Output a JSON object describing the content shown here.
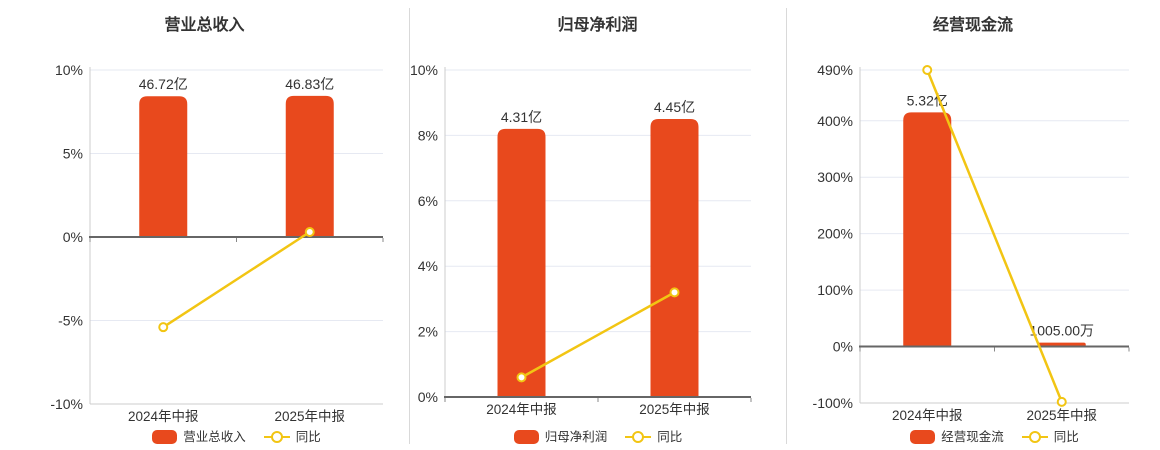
{
  "colors": {
    "bar": "#e8491d",
    "line": "#f2c513",
    "axis": "#cccccc",
    "grid": "#e6e9f2",
    "zero_axis": "#666666",
    "tick": "#888888",
    "text": "#333333",
    "divider": "#d9d9d9",
    "background": "#ffffff"
  },
  "chart_data": [
    {
      "type": "bar",
      "title": "营业总收入",
      "categories": [
        "2024年中报",
        "2025年中报"
      ],
      "series": [
        {
          "name": "营业总收入",
          "type": "bar",
          "values": [
            "46.72亿",
            "46.83亿"
          ],
          "plotted_pct": [
            8.43,
            8.45
          ]
        },
        {
          "name": "同比",
          "type": "line",
          "values_pct": [
            -5.4,
            0.3
          ]
        }
      ],
      "y_unit": "%",
      "ylim": [
        -10,
        10
      ],
      "yticks": [
        -10,
        -5,
        0,
        5,
        10
      ],
      "grid": true,
      "legend_position": "bottom"
    },
    {
      "type": "bar",
      "title": "归母净利润",
      "categories": [
        "2024年中报",
        "2025年中报"
      ],
      "series": [
        {
          "name": "归母净利润",
          "type": "bar",
          "values": [
            "4.31亿",
            "4.45亿"
          ],
          "plotted_pct": [
            8.2,
            8.5
          ]
        },
        {
          "name": "同比",
          "type": "line",
          "values_pct": [
            0.6,
            3.2
          ]
        }
      ],
      "y_unit": "%",
      "ylim": [
        0,
        10
      ],
      "yticks": [
        0,
        2,
        4,
        6,
        8,
        10
      ],
      "grid": true,
      "legend_position": "bottom"
    },
    {
      "type": "bar",
      "title": "经营现金流",
      "categories": [
        "2024年中报",
        "2025年中报"
      ],
      "series": [
        {
          "name": "经营现金流",
          "type": "bar",
          "values": [
            "5.32亿",
            "1005.00万"
          ],
          "plotted_pct": [
            415,
            7
          ]
        },
        {
          "name": "同比",
          "type": "line",
          "values_pct": [
            490,
            -98
          ]
        }
      ],
      "y_unit": "%",
      "ylim": [
        -100,
        490
      ],
      "yticks": [
        -100,
        0,
        100,
        200,
        300,
        400,
        490
      ],
      "grid": true,
      "legend_position": "bottom"
    }
  ]
}
